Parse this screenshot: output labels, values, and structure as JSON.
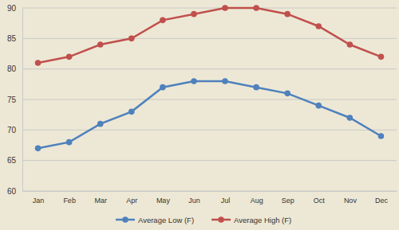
{
  "chart_data": {
    "type": "line",
    "categories": [
      "Jan",
      "Feb",
      "Mar",
      "Apr",
      "May",
      "Jun",
      "Jul",
      "Aug",
      "Sep",
      "Oct",
      "Nov",
      "Dec"
    ],
    "series": [
      {
        "name": "Average Low (F)",
        "color": "#4f81bd",
        "marker": "circle",
        "values": [
          67,
          68,
          71,
          73,
          77,
          78,
          78,
          77,
          76,
          74,
          72,
          69
        ]
      },
      {
        "name": "Average High (F)",
        "color": "#c0504d",
        "marker": "circle",
        "values": [
          81,
          82,
          84,
          85,
          88,
          89,
          90,
          90,
          89,
          87,
          84,
          82
        ]
      }
    ],
    "ylim": [
      60,
      90
    ],
    "yticks": [
      60,
      65,
      70,
      75,
      80,
      85,
      90
    ],
    "grid": true,
    "legend": "bottom"
  }
}
